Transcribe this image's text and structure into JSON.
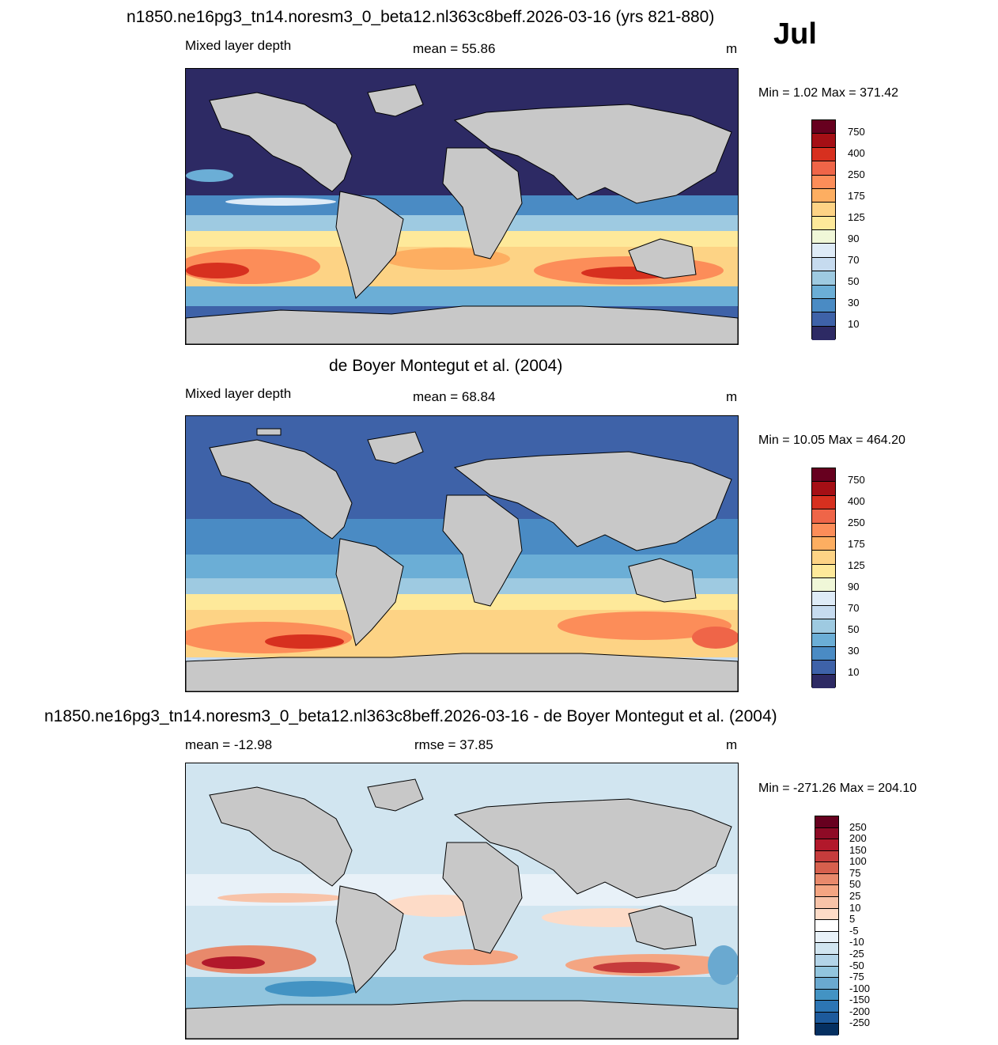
{
  "figure": {
    "month": "Jul"
  },
  "panels": [
    {
      "title": "n1850.ne16pg3_tn14.noresm3_0_beta12.nl363c8beff.2026-03-16 (yrs 821-880)",
      "left_label": "Mixed layer depth",
      "center_label": "mean =  55.86",
      "right_label": "m",
      "stats": "Min =   1.02 Max = 371.42",
      "colorbar": {
        "labels": [
          "750",
          "400",
          "250",
          "175",
          "125",
          "90",
          "70",
          "50",
          "30",
          "10"
        ],
        "colors": [
          "#67001f",
          "#a50f15",
          "#d7301f",
          "#ef6548",
          "#fc8d59",
          "#fdae61",
          "#fdd385",
          "#fee99a",
          "#f0f7d8",
          "#deebf7",
          "#c6dbef",
          "#9ecae1",
          "#6baed6",
          "#4a8bc4",
          "#3e62a8",
          "#2d2a64"
        ]
      }
    },
    {
      "title": "de Boyer Montegut et al. (2004)",
      "left_label": "Mixed layer depth",
      "center_label": "mean =  68.84",
      "right_label": "m",
      "stats": "Min =  10.05 Max = 464.20",
      "colorbar": {
        "labels": [
          "750",
          "400",
          "250",
          "175",
          "125",
          "90",
          "70",
          "50",
          "30",
          "10"
        ],
        "colors": [
          "#67001f",
          "#a50f15",
          "#d7301f",
          "#ef6548",
          "#fc8d59",
          "#fdae61",
          "#fdd385",
          "#fee99a",
          "#f0f7d8",
          "#deebf7",
          "#c6dbef",
          "#9ecae1",
          "#6baed6",
          "#4a8bc4",
          "#3e62a8",
          "#2d2a64"
        ]
      }
    },
    {
      "title": "n1850.ne16pg3_tn14.noresm3_0_beta12.nl363c8beff.2026-03-16 - de Boyer Montegut et al. (2004)",
      "left_label": "mean = -12.98",
      "center_label": "rmse =  37.85",
      "right_label": "m",
      "stats": "Min = -271.26 Max = 204.10",
      "colorbar": {
        "labels": [
          "250",
          "200",
          "150",
          "100",
          "75",
          "50",
          "25",
          "10",
          "5",
          "-5",
          "-10",
          "-25",
          "-50",
          "-75",
          "-100",
          "-150",
          "-200",
          "-250"
        ],
        "colors": [
          "#67001f",
          "#8e0b26",
          "#b2182b",
          "#c63c3c",
          "#d6604d",
          "#e8896b",
          "#f4a582",
          "#f8c3a8",
          "#fddbc7",
          "#ffffff",
          "#e8f1f8",
          "#d1e5f0",
          "#b3d4e8",
          "#92c5de",
          "#6aa9d0",
          "#4393c3",
          "#2c75b4",
          "#1d5a9c",
          "#053061"
        ]
      }
    }
  ],
  "chart_data": [
    {
      "type": "heatmap",
      "title": "n1850.ne16pg3_tn14.noresm3_0_beta12.nl363c8beff.2026-03-16 (yrs 821-880)",
      "variable": "Mixed layer depth",
      "units": "m",
      "mean": 55.86,
      "min": 1.02,
      "max": 371.42,
      "contour_levels": [
        10,
        20,
        30,
        40,
        50,
        60,
        70,
        80,
        90,
        100,
        125,
        150,
        175,
        200,
        250,
        300,
        400,
        500,
        750
      ]
    },
    {
      "type": "heatmap",
      "title": "de Boyer Montegut et al. (2004)",
      "variable": "Mixed layer depth",
      "units": "m",
      "mean": 68.84,
      "min": 10.05,
      "max": 464.2,
      "contour_levels": [
        10,
        20,
        30,
        40,
        50,
        60,
        70,
        80,
        90,
        100,
        125,
        150,
        175,
        200,
        250,
        300,
        400,
        500,
        750
      ]
    },
    {
      "type": "heatmap",
      "title": "n1850.ne16pg3_tn14.noresm3_0_beta12.nl363c8beff.2026-03-16 - de Boyer Montegut et al. (2004)",
      "units": "m",
      "mean": -12.98,
      "rmse": 37.85,
      "min": -271.26,
      "max": 204.1,
      "contour_levels": [
        -250,
        -200,
        -150,
        -100,
        -75,
        -50,
        -25,
        -10,
        -5,
        5,
        10,
        25,
        50,
        75,
        100,
        150,
        200,
        250
      ]
    }
  ]
}
